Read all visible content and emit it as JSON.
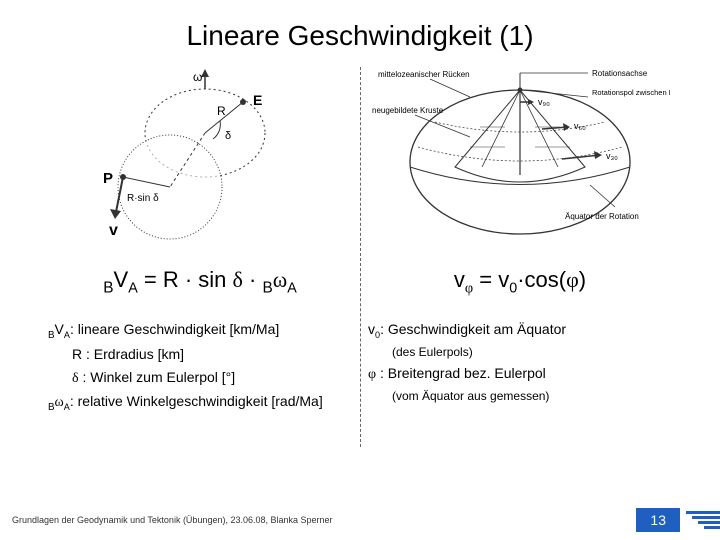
{
  "title": "Lineare Geschwindigkeit (1)",
  "left": {
    "formula_html": "<span class='presub'>B</span>V<span class='sub'>A</span> = R · sin <span class='greek'>δ</span> · <span class='presub'>B</span><span class='greek'>ω</span><span class='sub'>A</span>",
    "defs": [
      {
        "html": "<span class='presub'>B</span>V<span class='sub'>A</span>: lineare Geschwindigkeit [km/Ma]",
        "indent": false
      },
      {
        "html": "R : Erdradius [km]",
        "indent": true
      },
      {
        "html": "<span class='greek'>δ</span> : Winkel zum Eulerpol [°]",
        "indent": true
      },
      {
        "html": "<span class='presub'>B</span><span class='greek'>ω</span><span class='sub'>A</span>: relative Winkelgeschwindigkeit [rad/Ma]",
        "indent": false
      }
    ],
    "diagram_labels": {
      "omega": "ω",
      "E": "E",
      "R": "R",
      "P": "P",
      "Rsind": "R·sin δ",
      "delta": "δ",
      "v": "v"
    }
  },
  "right": {
    "formula_html": "v<span class='sub greekn'>φ</span> = v<span class='sub'>0</span>·cos(<span class='greekn'>φ</span>)",
    "defs": [
      {
        "html": "v<span class='sub'>0</span>: Geschwindigkeit am Äquator",
        "indent": false,
        "small": false
      },
      {
        "html": "(des Eulerpols)",
        "indent": true,
        "small": true
      },
      {
        "html": "<span class='greekn'>φ</span> : Breitengrad bez. Eulerpol",
        "indent": false,
        "small": false
      },
      {
        "html": "(vom Äquator aus gemessen)",
        "indent": true,
        "small": true
      }
    ],
    "diagram_labels": {
      "ruecken": "mittelozeanischer Rücken",
      "achse": "Rotationsachse",
      "kruste": "neugebildete Kruste",
      "pol": "Rotationspol zwischen Platte A und B",
      "v90": "v₉₀",
      "v60": "v₆₀",
      "v30": "v₃₀",
      "equator": "Äquator der Rotation"
    }
  },
  "footer": {
    "text": "Grundlagen der Geodynamik und Tektonik (Übungen), 23.06.08, Blanka Sperner",
    "page": "13"
  },
  "colors": {
    "accent": "#1f5fbf",
    "text": "#000000",
    "diagram_stroke": "#333333"
  }
}
